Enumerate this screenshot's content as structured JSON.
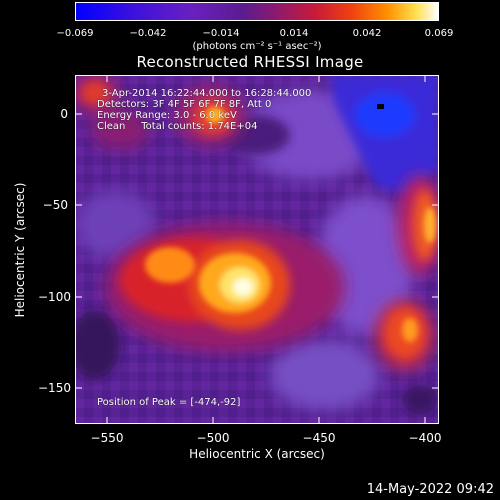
{
  "colorbar": {
    "ticks": [
      "−0.069",
      "−0.042",
      "−0.014",
      "0.014",
      "0.042",
      "0.069"
    ],
    "units": "(photons cm⁻² s⁻¹ asec⁻²)"
  },
  "title": "Reconstructed RHESSI Image",
  "info": {
    "line1": "3-Apr-2014 16:22:44.000 to 16:28:44.000",
    "line2": "Detectors: 3F 4F 5F 6F 7F 8F, Att 0",
    "line3": "Energy Range: 3.0 - 6.0 keV",
    "line4": "Clean     Total counts: 1.74E+04",
    "peak": "Position of Peak = [-474,-92]"
  },
  "axes": {
    "x_label": "Heliocentric X (arcsec)",
    "y_label": "Heliocentric Y (arcsec)",
    "x_ticks": [
      "−550",
      "−500",
      "−450",
      "−400"
    ],
    "y_ticks": [
      "0",
      "−50",
      "−100",
      "−150"
    ]
  },
  "timestamp": "14-May-2022 09:42"
}
